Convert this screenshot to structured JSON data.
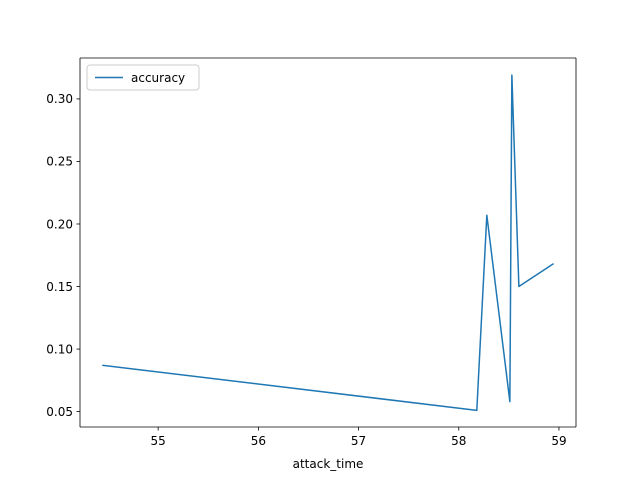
{
  "chart_data": {
    "type": "line",
    "title": "",
    "xlabel": "attack_time",
    "ylabel": "",
    "xlim": [
      54.22,
      59.17
    ],
    "ylim": [
      0.0377,
      0.3327
    ],
    "xticks": [
      55,
      56,
      57,
      58,
      59
    ],
    "yticks": [
      0.05,
      0.1,
      0.15,
      0.2,
      0.25,
      0.3
    ],
    "xtick_labels": [
      "55",
      "56",
      "57",
      "58",
      "59"
    ],
    "ytick_labels": [
      "0.05",
      "0.10",
      "0.15",
      "0.20",
      "0.25",
      "0.30"
    ],
    "grid": false,
    "legend_position": "upper-left",
    "series": [
      {
        "name": "accuracy",
        "color": "#1f77b4",
        "x": [
          54.45,
          58.18,
          58.28,
          58.51,
          58.53,
          58.6,
          58.94
        ],
        "y": [
          0.087,
          0.051,
          0.207,
          0.058,
          0.319,
          0.15,
          0.168
        ]
      }
    ]
  }
}
